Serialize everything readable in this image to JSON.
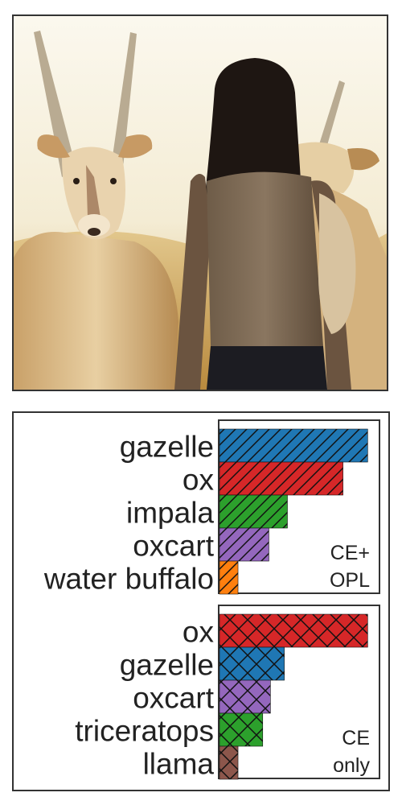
{
  "colors": {
    "blue": "#1f77b4",
    "red": "#d62728",
    "green": "#2ca02c",
    "purple": "#9467bd",
    "orange": "#ff7f0e",
    "brown": "#8c564b"
  },
  "chart_data": [
    {
      "type": "bar",
      "orientation": "horizontal",
      "categories": [
        "gazelle",
        "ox",
        "impala",
        "oxcart",
        "water buffalo"
      ],
      "values": [
        0.96,
        0.8,
        0.44,
        0.32,
        0.12
      ],
      "bar_colors": [
        "blue",
        "red",
        "green",
        "purple",
        "orange"
      ],
      "hatch": "diagonal",
      "panel_label": [
        "CE+",
        "OPL"
      ],
      "xlim": [
        0,
        1
      ],
      "grid": false
    },
    {
      "type": "bar",
      "orientation": "horizontal",
      "categories": [
        "ox",
        "gazelle",
        "oxcart",
        "triceratops",
        "llama"
      ],
      "values": [
        0.96,
        0.42,
        0.33,
        0.28,
        0.12
      ],
      "bar_colors": [
        "red",
        "blue",
        "purple",
        "green",
        "brown"
      ],
      "hatch": "cross",
      "panel_label": [
        "CE",
        "only"
      ],
      "xlim": [
        0,
        1
      ],
      "grid": false
    }
  ]
}
